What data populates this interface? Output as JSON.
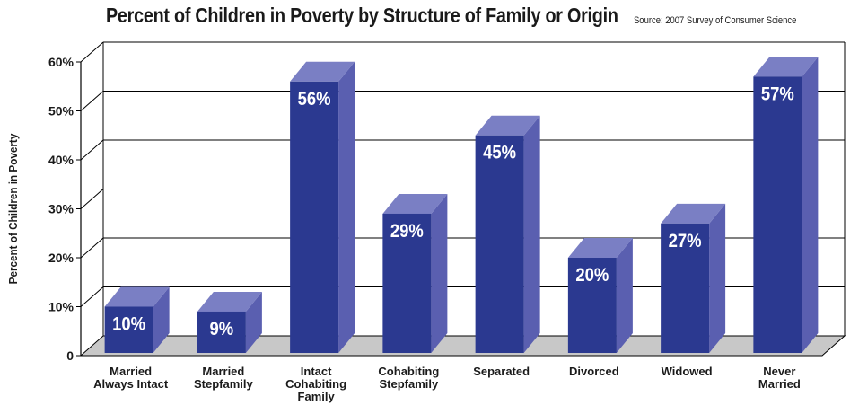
{
  "chart_data": {
    "type": "bar",
    "title": "Percent of Children in Poverty by Structure of Family or Origin",
    "source": "Source: 2007 Survey of Consumer Science",
    "ylabel": "Percent of Children in Poverty",
    "xlabel": "",
    "ylim": [
      0,
      60
    ],
    "y_ticks": [
      "0",
      "10%",
      "20%",
      "30%",
      "40%",
      "50%",
      "60%"
    ],
    "categories": [
      "Married\nAlways Intact",
      "Married\nStepfamily",
      "Intact\nCohabiting\nFamily",
      "Cohabiting\nStepfamily",
      "Separated",
      "Divorced",
      "Widowed",
      "Never\nMarried"
    ],
    "values": [
      10,
      9,
      56,
      29,
      45,
      20,
      27,
      57
    ],
    "data_labels": [
      "10%",
      "9%",
      "56%",
      "29%",
      "45%",
      "20%",
      "27%",
      "57%"
    ],
    "grid": true,
    "style": "3d",
    "colors": {
      "bar_front": "#2b3990",
      "bar_side": "#5a5fb0",
      "bar_top": "#7a7fc4",
      "floor": "#c8c8c8",
      "grid": "#000000",
      "label": "#ffffff"
    }
  }
}
